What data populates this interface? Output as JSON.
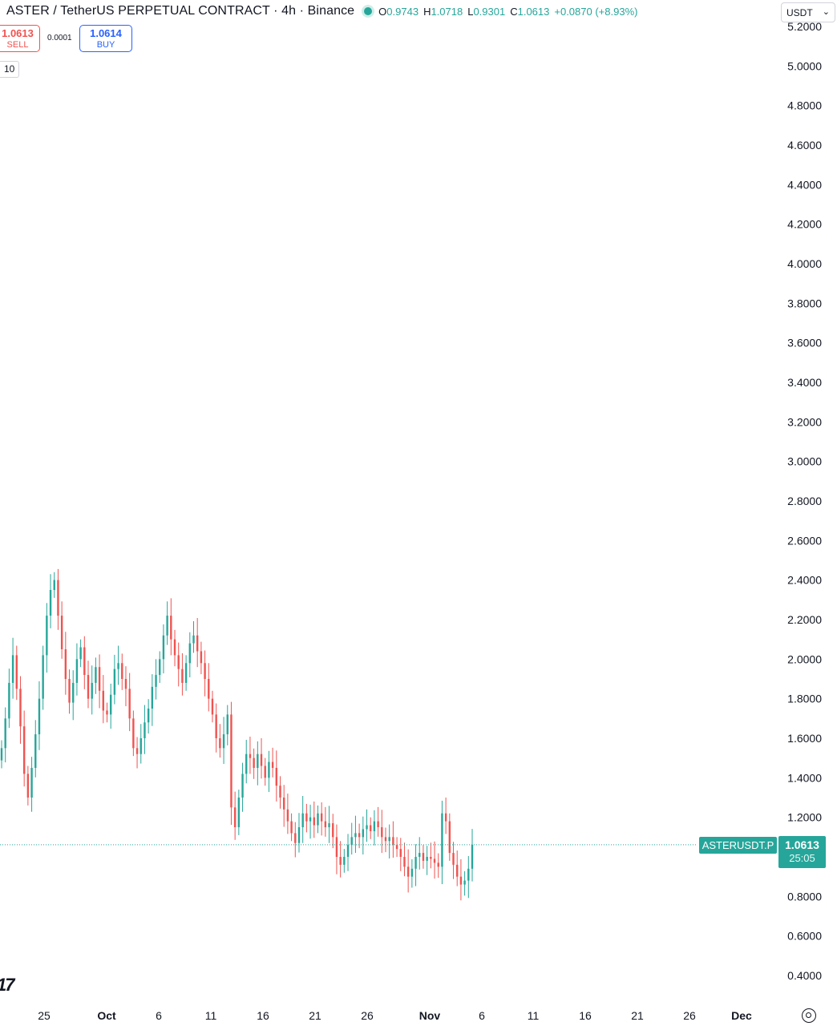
{
  "header": {
    "title": "ASTER / TetherUS PERPETUAL CONTRACT · 4h · Binance",
    "ohlc": {
      "o_label": "O",
      "o_value": "0.9743",
      "h_label": "H",
      "h_value": "1.0718",
      "l_label": "L",
      "l_value": "0.9301",
      "c_label": "C",
      "c_value": "1.0613",
      "change": "+0.0870 (+8.93%)"
    },
    "currency": "USDT"
  },
  "trade": {
    "sell_price": "1.0613",
    "sell_label": "SELL",
    "spread": "0.0001",
    "buy_price": "1.0614",
    "buy_label": "BUY"
  },
  "indicator_chip": "10",
  "price_label": {
    "symbol": "ASTERUSDT.P",
    "price": "1.0613",
    "countdown": "25:05"
  },
  "colors": {
    "up": "#26a69a",
    "down": "#ef5350",
    "buy": "#2962ff",
    "axis_text": "#131722"
  },
  "icons": [
    "status-dot-icon",
    "tradingview-logo-icon",
    "settings-icon",
    "chevron-down-icon"
  ],
  "chart_data": {
    "type": "candlestick",
    "symbol": "ASTERUSDT.P",
    "interval": "4h",
    "exchange": "Binance",
    "y_axis": {
      "ticks": [
        "5.2000",
        "5.0000",
        "4.8000",
        "4.6000",
        "4.4000",
        "4.2000",
        "4.0000",
        "3.8000",
        "3.6000",
        "3.4000",
        "3.2000",
        "3.0000",
        "2.8000",
        "2.6000",
        "2.4000",
        "2.2000",
        "2.0000",
        "1.8000",
        "1.6000",
        "1.4000",
        "1.2000",
        "1.0000",
        "0.8000",
        "0.6000",
        "0.4000"
      ],
      "range": [
        0.4,
        5.2
      ]
    },
    "x_axis": {
      "ticks": [
        "25",
        "Oct",
        "6",
        "11",
        "16",
        "21",
        "26",
        "Nov",
        "6",
        "11",
        "16",
        "21",
        "26",
        "Dec"
      ]
    },
    "last_price": 1.0613,
    "candles_close": [
      1.55,
      1.7,
      1.88,
      2.02,
      1.85,
      1.66,
      1.42,
      1.3,
      1.45,
      1.62,
      1.8,
      2.02,
      2.22,
      2.35,
      2.4,
      2.22,
      2.05,
      1.9,
      1.78,
      1.88,
      2.0,
      2.06,
      1.92,
      1.8,
      1.88,
      1.96,
      1.84,
      1.74,
      1.72,
      1.82,
      1.95,
      1.98,
      1.9,
      1.85,
      1.7,
      1.55,
      1.52,
      1.6,
      1.68,
      1.75,
      1.86,
      1.92,
      2.0,
      2.12,
      2.22,
      2.1,
      2.02,
      1.95,
      1.88,
      1.98,
      2.08,
      2.12,
      2.04,
      1.98,
      1.9,
      1.8,
      1.72,
      1.6,
      1.55,
      1.62,
      1.72,
      1.25,
      1.15,
      1.3,
      1.42,
      1.52,
      1.5,
      1.45,
      1.52,
      1.46,
      1.4,
      1.48,
      1.45,
      1.36,
      1.3,
      1.24,
      1.18,
      1.12,
      1.07,
      1.15,
      1.22,
      1.18,
      1.2,
      1.16,
      1.22,
      1.18,
      1.15,
      1.17,
      1.1,
      1.0,
      0.96,
      1.0,
      1.06,
      1.1,
      1.12,
      1.1,
      1.14,
      1.16,
      1.13,
      1.18,
      1.15,
      1.1,
      1.08,
      1.1,
      1.06,
      1.04,
      1.0,
      0.95,
      0.9,
      0.94,
      1.0,
      1.02,
      0.98,
      1.0,
      0.99,
      0.97,
      0.95,
      1.22,
      1.18,
      1.02,
      0.96,
      0.9,
      0.86,
      0.88,
      0.94,
      1.0613
    ]
  }
}
